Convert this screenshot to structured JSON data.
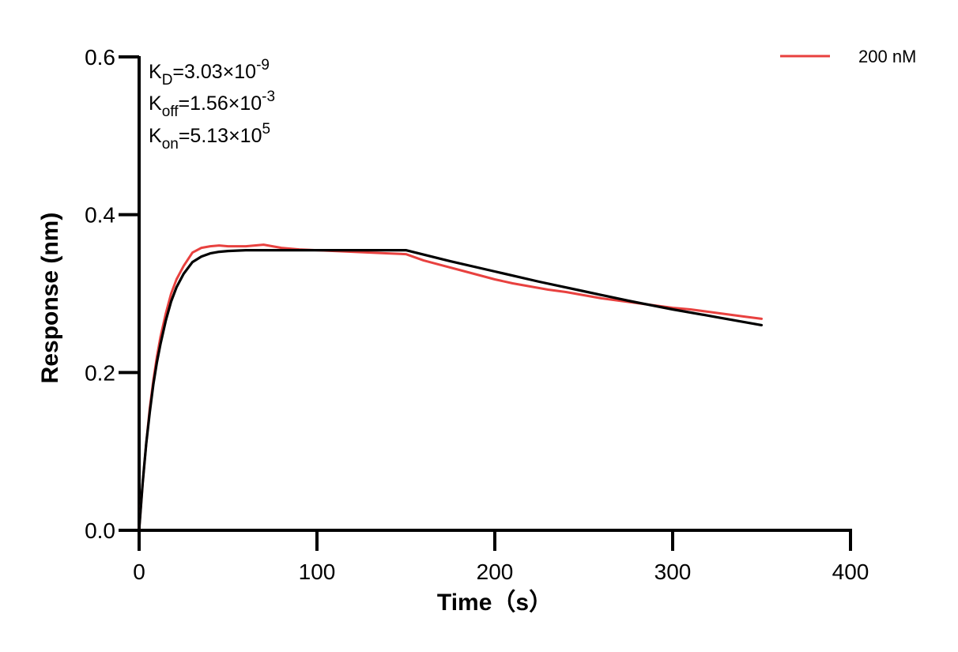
{
  "chart_data": {
    "type": "line",
    "title": "",
    "xlabel": "Time（s）",
    "ylabel": "Response (nm)",
    "xlim": [
      0,
      400
    ],
    "ylim": [
      0,
      0.6
    ],
    "x_ticks": [
      0,
      100,
      200,
      300,
      400
    ],
    "x_tick_labels": [
      "0",
      "100",
      "200",
      "300",
      "400"
    ],
    "y_ticks": [
      0.0,
      0.2,
      0.4,
      0.6
    ],
    "y_tick_labels": [
      "0.0",
      "0.2",
      "0.4",
      "0.6"
    ],
    "grid": false,
    "legend_position": "top-right",
    "annotations": [
      {
        "base": "K",
        "sub": "D",
        "mid": "=3.03×10",
        "sup": "-9"
      },
      {
        "base": "K",
        "sub": "off",
        "mid": "=1.56×10",
        "sup": "-3"
      },
      {
        "base": "K",
        "sub": "on",
        "mid": "=5.13×10",
        "sup": "5"
      }
    ],
    "series": [
      {
        "name": "200 nM",
        "color": "#e8413f",
        "x": [
          0,
          2,
          4,
          6,
          8,
          10,
          12,
          15,
          18,
          21,
          25,
          30,
          35,
          40,
          45,
          50,
          60,
          70,
          80,
          90,
          100,
          110,
          120,
          130,
          140,
          150,
          160,
          170,
          180,
          190,
          200,
          210,
          220,
          230,
          240,
          250,
          260,
          270,
          280,
          290,
          300,
          310,
          320,
          330,
          340,
          350
        ],
        "y": [
          0.0,
          0.06,
          0.11,
          0.155,
          0.19,
          0.22,
          0.245,
          0.275,
          0.3,
          0.318,
          0.335,
          0.352,
          0.358,
          0.36,
          0.361,
          0.36,
          0.36,
          0.362,
          0.358,
          0.356,
          0.355,
          0.354,
          0.353,
          0.352,
          0.351,
          0.35,
          0.342,
          0.336,
          0.33,
          0.324,
          0.318,
          0.313,
          0.309,
          0.305,
          0.302,
          0.298,
          0.294,
          0.291,
          0.288,
          0.285,
          0.282,
          0.28,
          0.277,
          0.274,
          0.271,
          0.268
        ]
      },
      {
        "name": "",
        "color": "#000000",
        "x": [
          0,
          2,
          4,
          6,
          8,
          10,
          12,
          15,
          18,
          21,
          25,
          30,
          35,
          40,
          45,
          50,
          60,
          70,
          80,
          90,
          100,
          110,
          120,
          130,
          140,
          150,
          175,
          200,
          225,
          250,
          275,
          300,
          325,
          350
        ],
        "y": [
          0.0,
          0.06,
          0.11,
          0.15,
          0.185,
          0.213,
          0.236,
          0.266,
          0.29,
          0.308,
          0.325,
          0.34,
          0.347,
          0.351,
          0.353,
          0.354,
          0.355,
          0.355,
          0.355,
          0.355,
          0.355,
          0.355,
          0.355,
          0.355,
          0.355,
          0.355,
          0.341,
          0.328,
          0.315,
          0.303,
          0.291,
          0.28,
          0.27,
          0.26
        ]
      }
    ]
  }
}
